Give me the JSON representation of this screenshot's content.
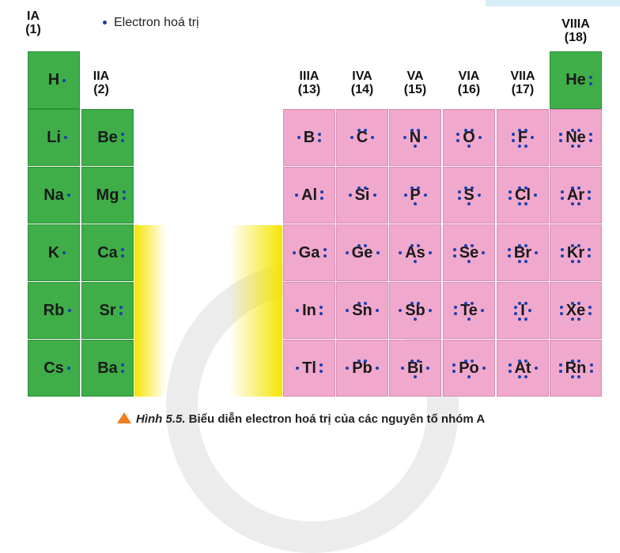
{
  "legend": "Electron hoá trị",
  "colors": {
    "s_block": "#3fae49",
    "p_block": "#f0a8cc",
    "electron_dot": "#1c3fb0",
    "transition_band": "#f5e400",
    "caption_marker": "#f07d1e"
  },
  "caption": {
    "figure": "Hình 5.5.",
    "text": " Biểu diễn electron hoá trị của các nguyên tố nhóm A"
  },
  "groups": [
    {
      "name": "IA",
      "number": "(1)"
    },
    {
      "name": "IIA",
      "number": "(2)"
    },
    {
      "name": "IIIA",
      "number": "(13)"
    },
    {
      "name": "IVA",
      "number": "(14)"
    },
    {
      "name": "VA",
      "number": "(15)"
    },
    {
      "name": "VIA",
      "number": "(16)"
    },
    {
      "name": "VIIA",
      "number": "(17)"
    },
    {
      "name": "VIIIA",
      "number": "(18)"
    }
  ],
  "elements": [
    {
      "symbol": "H",
      "group": 0,
      "period": 1,
      "valence": 1,
      "block": "s"
    },
    {
      "symbol": "He",
      "group": 7,
      "period": 1,
      "valence": 2,
      "block": "s"
    },
    {
      "symbol": "Li",
      "group": 0,
      "period": 2,
      "valence": 1,
      "block": "s"
    },
    {
      "symbol": "Be",
      "group": 1,
      "period": 2,
      "valence": 2,
      "block": "s"
    },
    {
      "symbol": "B",
      "group": 2,
      "period": 2,
      "valence": 3,
      "block": "p"
    },
    {
      "symbol": "C",
      "group": 3,
      "period": 2,
      "valence": 4,
      "block": "p"
    },
    {
      "symbol": "N",
      "group": 4,
      "period": 2,
      "valence": 5,
      "block": "p"
    },
    {
      "symbol": "O",
      "group": 5,
      "period": 2,
      "valence": 6,
      "block": "p"
    },
    {
      "symbol": "F",
      "group": 6,
      "period": 2,
      "valence": 7,
      "block": "p"
    },
    {
      "symbol": "Ne",
      "group": 7,
      "period": 2,
      "valence": 8,
      "block": "p"
    },
    {
      "symbol": "Na",
      "group": 0,
      "period": 3,
      "valence": 1,
      "block": "s"
    },
    {
      "symbol": "Mg",
      "group": 1,
      "period": 3,
      "valence": 2,
      "block": "s"
    },
    {
      "symbol": "Al",
      "group": 2,
      "period": 3,
      "valence": 3,
      "block": "p"
    },
    {
      "symbol": "Si",
      "group": 3,
      "period": 3,
      "valence": 4,
      "block": "p"
    },
    {
      "symbol": "P",
      "group": 4,
      "period": 3,
      "valence": 5,
      "block": "p"
    },
    {
      "symbol": "S",
      "group": 5,
      "period": 3,
      "valence": 6,
      "block": "p"
    },
    {
      "symbol": "Cl",
      "group": 6,
      "period": 3,
      "valence": 7,
      "block": "p"
    },
    {
      "symbol": "Ar",
      "group": 7,
      "period": 3,
      "valence": 8,
      "block": "p"
    },
    {
      "symbol": "K",
      "group": 0,
      "period": 4,
      "valence": 1,
      "block": "s"
    },
    {
      "symbol": "Ca",
      "group": 1,
      "period": 4,
      "valence": 2,
      "block": "s"
    },
    {
      "symbol": "Ga",
      "group": 2,
      "period": 4,
      "valence": 3,
      "block": "p"
    },
    {
      "symbol": "Ge",
      "group": 3,
      "period": 4,
      "valence": 4,
      "block": "p"
    },
    {
      "symbol": "As",
      "group": 4,
      "period": 4,
      "valence": 5,
      "block": "p"
    },
    {
      "symbol": "Se",
      "group": 5,
      "period": 4,
      "valence": 6,
      "block": "p"
    },
    {
      "symbol": "Br",
      "group": 6,
      "period": 4,
      "valence": 7,
      "block": "p"
    },
    {
      "symbol": "Kr",
      "group": 7,
      "period": 4,
      "valence": 8,
      "block": "p"
    },
    {
      "symbol": "Rb",
      "group": 0,
      "period": 5,
      "valence": 1,
      "block": "s"
    },
    {
      "symbol": "Sr",
      "group": 1,
      "period": 5,
      "valence": 2,
      "block": "s"
    },
    {
      "symbol": "In",
      "group": 2,
      "period": 5,
      "valence": 3,
      "block": "p"
    },
    {
      "symbol": "Sn",
      "group": 3,
      "period": 5,
      "valence": 4,
      "block": "p"
    },
    {
      "symbol": "Sb",
      "group": 4,
      "period": 5,
      "valence": 5,
      "block": "p"
    },
    {
      "symbol": "Te",
      "group": 5,
      "period": 5,
      "valence": 6,
      "block": "p"
    },
    {
      "symbol": "I",
      "group": 6,
      "period": 5,
      "valence": 7,
      "block": "p"
    },
    {
      "symbol": "Xe",
      "group": 7,
      "period": 5,
      "valence": 8,
      "block": "p"
    },
    {
      "symbol": "Cs",
      "group": 0,
      "period": 6,
      "valence": 1,
      "block": "s"
    },
    {
      "symbol": "Ba",
      "group": 1,
      "period": 6,
      "valence": 2,
      "block": "s"
    },
    {
      "symbol": "Tl",
      "group": 2,
      "period": 6,
      "valence": 3,
      "block": "p"
    },
    {
      "symbol": "Pb",
      "group": 3,
      "period": 6,
      "valence": 4,
      "block": "p"
    },
    {
      "symbol": "Bi",
      "group": 4,
      "period": 6,
      "valence": 5,
      "block": "p"
    },
    {
      "symbol": "Po",
      "group": 5,
      "period": 6,
      "valence": 6,
      "block": "p"
    },
    {
      "symbol": "At",
      "group": 6,
      "period": 6,
      "valence": 7,
      "block": "p"
    },
    {
      "symbol": "Rn",
      "group": 7,
      "period": 6,
      "valence": 8,
      "block": "p"
    }
  ]
}
